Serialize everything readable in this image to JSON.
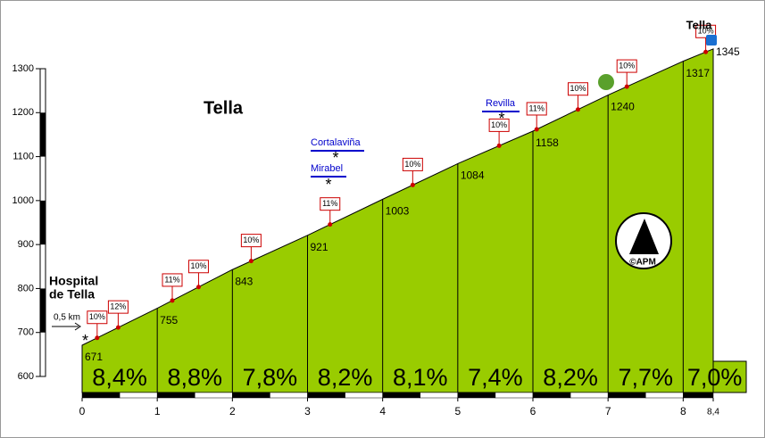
{
  "chart_data": {
    "type": "profile",
    "title": "Tella",
    "start_label": [
      "Hospital",
      "de Tella"
    ],
    "end_label": "Tella",
    "distance_note": "0,5 km",
    "roads": [
      "Cortalaviña",
      "Mirabel",
      "Revilla"
    ],
    "credit": "©APM",
    "x": [
      0,
      1,
      2,
      3,
      4,
      5,
      6,
      7,
      8,
      8.4
    ],
    "elevation": [
      671,
      755,
      843,
      921,
      1003,
      1084,
      1158,
      1240,
      1317,
      1345
    ],
    "gradients": [
      8.4,
      8.8,
      7.8,
      8.2,
      8.1,
      7.4,
      8.2,
      7.7,
      7.0
    ],
    "gradient_labels": [
      "8,4%",
      "8,8%",
      "7,8%",
      "8,2%",
      "8,1%",
      "7,4%",
      "8,2%",
      "7,7%",
      "7,0%"
    ],
    "flags": [
      {
        "x": 0.2,
        "label": "10%"
      },
      {
        "x": 0.48,
        "label": "12%"
      },
      {
        "x": 1.2,
        "label": "11%"
      },
      {
        "x": 1.55,
        "label": "10%"
      },
      {
        "x": 2.25,
        "label": "10%"
      },
      {
        "x": 3.3,
        "label": "11%"
      },
      {
        "x": 4.4,
        "label": "10%"
      },
      {
        "x": 5.55,
        "label": "10%"
      },
      {
        "x": 6.05,
        "label": "11%"
      },
      {
        "x": 6.6,
        "label": "10%"
      },
      {
        "x": 7.25,
        "label": "10%"
      },
      {
        "x": 8.3,
        "label": "10%"
      }
    ],
    "xlim": [
      0,
      8.4
    ],
    "xticks": [
      0,
      1,
      2,
      3,
      4,
      5,
      6,
      7,
      8,
      {
        "value": 8.4,
        "label": "8,4"
      }
    ],
    "ylim": [
      600,
      1300
    ],
    "yticks": [
      600,
      700,
      800,
      900,
      1000,
      1100,
      1200,
      1300
    ],
    "color": "#99cc00"
  }
}
